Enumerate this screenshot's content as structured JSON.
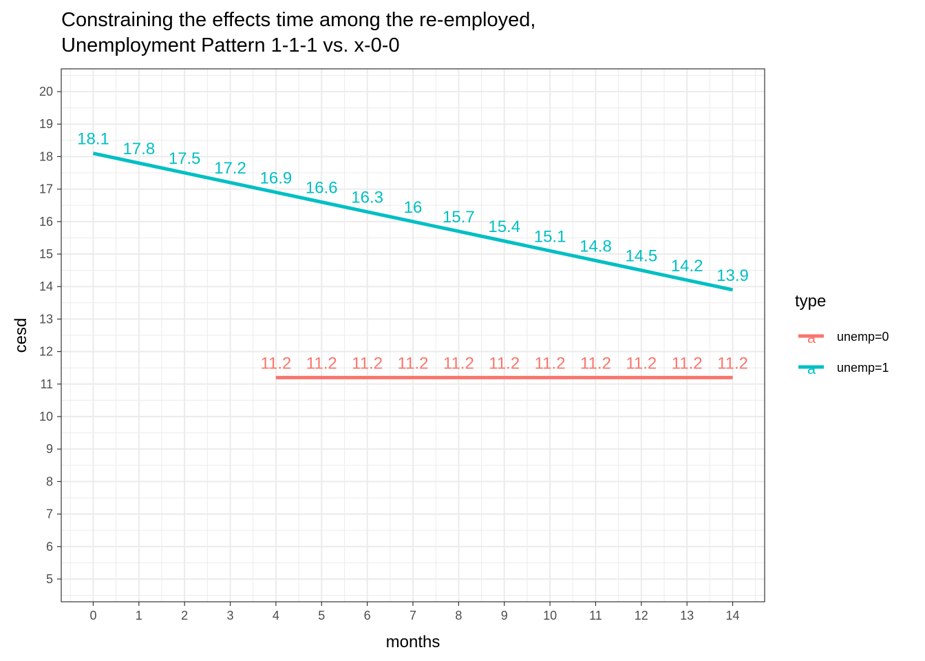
{
  "chart_data": {
    "type": "line",
    "title_lines": [
      "Constraining the effects time among the re-employed,",
      "Unemployment Pattern 1-1-1 vs. x-0-0"
    ],
    "xlabel": "months",
    "ylabel": "cesd",
    "xlim": [
      -0.7,
      14.7
    ],
    "ylim": [
      4.3,
      20.7
    ],
    "x_ticks": [
      0,
      1,
      2,
      3,
      4,
      5,
      6,
      7,
      8,
      9,
      10,
      11,
      12,
      13,
      14
    ],
    "y_ticks": [
      5,
      6,
      7,
      8,
      9,
      10,
      11,
      12,
      13,
      14,
      15,
      16,
      17,
      18,
      19,
      20
    ],
    "grid": true,
    "legend": {
      "title": "type",
      "position": "right",
      "key_glyph": "a"
    },
    "series": [
      {
        "name": "unemp=0",
        "color": "#F8766D",
        "x": [
          4,
          5,
          6,
          7,
          8,
          9,
          10,
          11,
          12,
          13,
          14
        ],
        "y": [
          11.2,
          11.2,
          11.2,
          11.2,
          11.2,
          11.2,
          11.2,
          11.2,
          11.2,
          11.2,
          11.2
        ],
        "labels": [
          "11.2",
          "11.2",
          "11.2",
          "11.2",
          "11.2",
          "11.2",
          "11.2",
          "11.2",
          "11.2",
          "11.2",
          "11.2"
        ]
      },
      {
        "name": "unemp=1",
        "color": "#00BFC4",
        "x": [
          0,
          1,
          2,
          3,
          4,
          5,
          6,
          7,
          8,
          9,
          10,
          11,
          12,
          13,
          14
        ],
        "y": [
          18.1,
          17.8,
          17.5,
          17.2,
          16.9,
          16.6,
          16.3,
          16.0,
          15.7,
          15.4,
          15.1,
          14.8,
          14.5,
          14.2,
          13.9
        ],
        "labels": [
          "18.1",
          "17.8",
          "17.5",
          "17.2",
          "16.9",
          "16.6",
          "16.3",
          "16",
          "15.7",
          "15.4",
          "15.1",
          "14.8",
          "14.5",
          "14.2",
          "13.9"
        ]
      }
    ]
  }
}
